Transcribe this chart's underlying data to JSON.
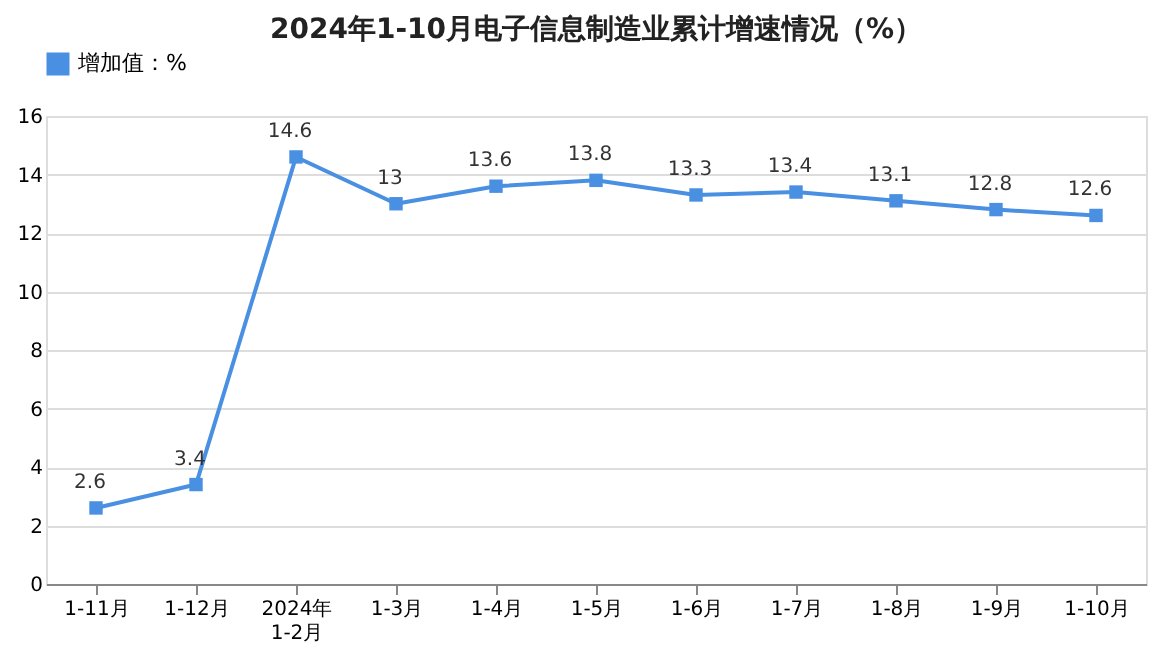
{
  "chart_data": {
    "type": "line",
    "title": "2024年1-10月电子信息制造业累计增速情况（%）",
    "categories": [
      "1-11月",
      "1-12月",
      "2024年\n1-2月",
      "1-3月",
      "1-4月",
      "1-5月",
      "1-6月",
      "1-7月",
      "1-8月",
      "1-9月",
      "1-10月"
    ],
    "series": [
      {
        "name": "增加值：%",
        "color": "#4a90e2",
        "values": [
          2.6,
          3.4,
          14.6,
          13,
          13.6,
          13.8,
          13.3,
          13.4,
          13.1,
          12.8,
          12.6
        ]
      }
    ],
    "ylim": [
      0,
      16
    ],
    "yticks": [
      0,
      2,
      4,
      6,
      8,
      10,
      12,
      14,
      16
    ],
    "grid": "y",
    "legend": "top",
    "marker": "square",
    "line_style": "solid",
    "data_labels": true
  }
}
